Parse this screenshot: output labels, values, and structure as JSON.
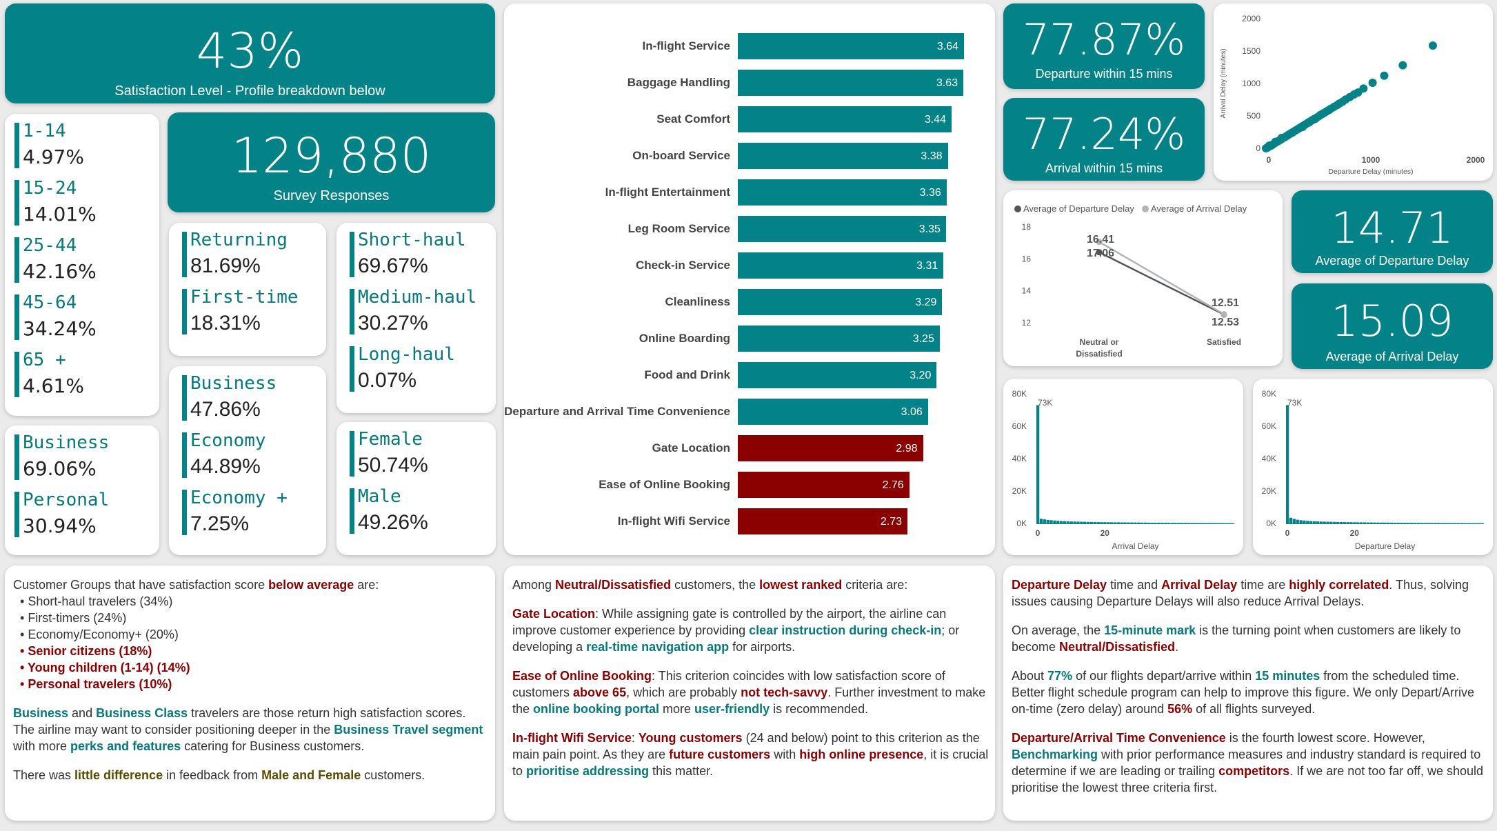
{
  "satisfaction": {
    "value": "43%",
    "label": "Satisfaction Level - Profile breakdown below"
  },
  "survey": {
    "value": "129,880",
    "label": "Survey Responses"
  },
  "age_groups": [
    {
      "label": "1-14",
      "value": "4.97%"
    },
    {
      "label": "15-24",
      "value": "14.01%"
    },
    {
      "label": "25-44",
      "value": "42.16%"
    },
    {
      "label": "45-64",
      "value": "34.24%"
    },
    {
      "label": "65 +",
      "value": "4.61%"
    }
  ],
  "travel_type": [
    {
      "label": "Business",
      "value": "69.06%"
    },
    {
      "label": "Personal",
      "value": "30.94%"
    }
  ],
  "customer_type": [
    {
      "label": "Returning",
      "value": "81.69%"
    },
    {
      "label": "First-time",
      "value": "18.31%"
    }
  ],
  "flight_class": [
    {
      "label": "Business",
      "value": "47.86%"
    },
    {
      "label": "Economy",
      "value": "44.89%"
    },
    {
      "label": "Economy +",
      "value": "7.25%"
    }
  ],
  "haul": [
    {
      "label": "Short-haul",
      "value": "69.67%"
    },
    {
      "label": "Medium-haul",
      "value": "30.27%"
    },
    {
      "label": "Long-haul",
      "value": "0.07%"
    }
  ],
  "gender": [
    {
      "label": "Female",
      "value": "50.74%"
    },
    {
      "label": "Male",
      "value": "49.26%"
    }
  ],
  "criteria_chart": {
    "type": "bar",
    "colors": {
      "above": "#038387",
      "below": "#8b0000"
    },
    "xlim": [
      0,
      3.64
    ],
    "categories": [
      "In-flight Service",
      "Baggage Handling",
      "Seat Comfort",
      "On-board Service",
      "In-flight Entertainment",
      "Leg Room Service",
      "Check-in Service",
      "Cleanliness",
      "Online Boarding",
      "Food and Drink",
      "Departure and Arrival Time Convenience",
      "Gate Location",
      "Ease of Online Booking",
      "In-flight Wifi Service"
    ],
    "values": [
      3.64,
      3.63,
      3.44,
      3.38,
      3.36,
      3.35,
      3.31,
      3.29,
      3.25,
      3.2,
      3.06,
      2.98,
      2.76,
      2.73
    ],
    "labels": [
      "3.64",
      "3.63",
      "3.44",
      "3.38",
      "3.36",
      "3.35",
      "3.31",
      "3.29",
      "3.25",
      "3.20",
      "3.06",
      "2.98",
      "2.76",
      "2.73"
    ],
    "below_average": [
      false,
      false,
      false,
      false,
      false,
      false,
      false,
      false,
      false,
      false,
      false,
      true,
      true,
      true
    ]
  },
  "departure_15": {
    "value": "77.87%",
    "label": "Departure within 15 mins"
  },
  "arrival_15": {
    "value": "77.24%",
    "label": "Arrival within 15 mins"
  },
  "avg_departure": {
    "value": "14.71",
    "label": "Average of Departure Delay"
  },
  "avg_arrival": {
    "value": "15.09",
    "label": "Average of Arrival Delay"
  },
  "scatter_chart": {
    "type": "scatter",
    "xlabel": "Departure Delay (minutes)",
    "ylabel": "Arrival Delay (minutes)",
    "xlim": [
      0,
      2000
    ],
    "ylim": [
      0,
      2000
    ],
    "xticks": [
      "0",
      "1000",
      "2000"
    ],
    "yticks": [
      "0",
      "500",
      "1000",
      "1500",
      "2000"
    ],
    "color": "#038387",
    "points": [
      [
        1592,
        1584
      ],
      [
        1305,
        1280
      ],
      [
        1128,
        1120
      ],
      [
        1017,
        1011
      ],
      [
        930,
        921
      ],
      [
        878,
        860
      ],
      [
        840,
        830
      ],
      [
        800,
        790
      ],
      [
        760,
        752
      ],
      [
        730,
        718
      ],
      [
        700,
        690
      ],
      [
        680,
        668
      ],
      [
        650,
        640
      ],
      [
        620,
        612
      ],
      [
        600,
        590
      ],
      [
        580,
        572
      ],
      [
        560,
        550
      ],
      [
        540,
        532
      ],
      [
        520,
        515
      ],
      [
        500,
        490
      ],
      [
        480,
        470
      ],
      [
        460,
        452
      ],
      [
        440,
        432
      ],
      [
        420,
        412
      ],
      [
        400,
        393
      ],
      [
        380,
        372
      ],
      [
        360,
        352
      ],
      [
        340,
        333
      ],
      [
        320,
        312
      ],
      [
        300,
        292
      ],
      [
        280,
        272
      ],
      [
        260,
        252
      ],
      [
        240,
        234
      ],
      [
        220,
        214
      ],
      [
        200,
        193
      ],
      [
        180,
        172
      ],
      [
        160,
        155
      ],
      [
        140,
        133
      ],
      [
        120,
        114
      ],
      [
        100,
        94
      ],
      [
        80,
        75
      ],
      [
        60,
        55
      ],
      [
        40,
        36
      ],
      [
        20,
        17
      ],
      [
        10,
        8
      ],
      [
        0,
        0
      ],
      [
        350,
        330
      ],
      [
        410,
        398
      ],
      [
        470,
        455
      ],
      [
        150,
        160
      ],
      [
        250,
        240
      ],
      [
        90,
        100
      ],
      [
        30,
        40
      ],
      [
        55,
        45
      ]
    ]
  },
  "line_chart": {
    "type": "line",
    "categories": [
      "Neutral or Dissatisfied",
      "Satisfied"
    ],
    "ylim": [
      11,
      18
    ],
    "yticks": [
      "12",
      "14",
      "16",
      "18"
    ],
    "series": [
      {
        "name": "Average of Departure Delay",
        "values": [
          16.41,
          12.51
        ],
        "labels": [
          "16.41",
          "12.51"
        ],
        "color": "#555555"
      },
      {
        "name": "Average of Arrival Delay",
        "values": [
          17.06,
          12.53
        ],
        "labels": [
          "17.06",
          "12.53"
        ],
        "color": "#b0b5bb"
      }
    ]
  },
  "arrival_hist": {
    "type": "bar",
    "xlabel": "Arrival Delay",
    "ylim": [
      0,
      80000
    ],
    "yticks": [
      "0K",
      "20K",
      "40K",
      "60K",
      "80K"
    ],
    "xticks": [
      "0",
      "20"
    ],
    "peak_label": "73K",
    "color": "#038387",
    "values": [
      73000,
      2900,
      2500,
      2200,
      2000,
      1800,
      1650,
      1500,
      1400,
      1300,
      1200,
      1150,
      1100,
      1050,
      1000,
      950,
      900,
      850,
      820,
      790,
      760,
      730,
      700,
      680,
      660,
      640,
      620,
      600,
      580,
      560,
      540,
      520,
      500,
      480,
      460,
      440,
      420,
      400,
      380,
      360,
      350,
      340,
      330,
      320,
      310,
      300,
      290,
      280,
      270,
      260,
      250,
      240,
      230,
      220,
      210,
      200,
      190,
      180,
      170
    ]
  },
  "departure_hist": {
    "type": "bar",
    "xlabel": "Departure Delay",
    "ylim": [
      0,
      80000
    ],
    "yticks": [
      "0K",
      "20K",
      "40K",
      "60K",
      "80K"
    ],
    "xticks": [
      "0",
      "20"
    ],
    "peak_label": "73K",
    "color": "#038387",
    "values": [
      73000,
      3500,
      2800,
      2300,
      2000,
      1800,
      1600,
      1450,
      1350,
      1250,
      1150,
      1100,
      1050,
      1000,
      950,
      900,
      860,
      820,
      780,
      750,
      720,
      690,
      660,
      630,
      610,
      590,
      570,
      550,
      530,
      510,
      490,
      470,
      450,
      430,
      410,
      395,
      380,
      365,
      350,
      335,
      320,
      310,
      300,
      290,
      280,
      270,
      260,
      250,
      240,
      230,
      220,
      210,
      200,
      190,
      180,
      170,
      160,
      150,
      140
    ]
  },
  "notes": {
    "groups_intro_a": "Customer Groups that have satisfaction score ",
    "groups_intro_b": "below average",
    "groups_intro_c": " are:",
    "groups": [
      "Short-haul travelers (34%)",
      "First-timers (24%)",
      "Economy/Economy+ (20%)"
    ],
    "groups_red": [
      "Senior citizens (18%)",
      "Young children (1-14) (14%)",
      "Personal travelers (10%)"
    ],
    "business_a": "Business",
    "business_b": " and ",
    "business_c": "Business Class",
    "business_d": " travelers are those return high satisfaction scores.",
    "business_e": "The airline may want to consider positioning deeper in the ",
    "business_f": "Business Travel segment",
    "business_g": " with more ",
    "business_h": "perks and features",
    "business_i": " catering for Business customers.",
    "gender_a": "There was ",
    "gender_b": "little difference",
    "gender_c": " in feedback from ",
    "gender_d": "Male and Female",
    "gender_e": " customers.",
    "mid_intro_a": "Among ",
    "mid_intro_b": "Neutral/Dissatisfied",
    "mid_intro_c": " customers, the ",
    "mid_intro_d": "lowest ranked",
    "mid_intro_e": " criteria are:",
    "gate_a": "Gate Location",
    "gate_b": ": While assigning gate is controlled by the airport, the airline can improve customer experience by providing ",
    "gate_c": "clear instruction during check-in",
    "gate_d": "; or developing a ",
    "gate_e": "real-time navigation app",
    "gate_f": " for airports.",
    "ease_a": "Ease of Online Booking",
    "ease_b": ": This criterion coincides with low satisfaction score of customers ",
    "ease_c": "above 65",
    "ease_d": ", which are probably ",
    "ease_e": "not tech-savvy",
    "ease_f": ". Further investment to make the ",
    "ease_g": "online booking portal",
    "ease_h": " more ",
    "ease_i": "user-friendly",
    "ease_j": " is recommended.",
    "wifi_a": "In-flight Wifi Service",
    "wifi_b": ": ",
    "wifi_c": "Young customers",
    "wifi_d": " (24 and below) point to this criterion as the main pain point. As they are ",
    "wifi_e": "future customers",
    "wifi_f": " with ",
    "wifi_g": "high online presence",
    "wifi_h": ", it is crucial to ",
    "wifi_i": "prioritise addressing",
    "wifi_j": " this matter.",
    "delay_a": "Departure Delay",
    "delay_b": " time and ",
    "delay_c": "Arrival Delay",
    "delay_d": " time are ",
    "delay_e": "highly correlated",
    "delay_f": ". Thus, solving issues causing Departure Delays will also reduce Arrival Delays.",
    "mark_a": "On average, the ",
    "mark_b": "15-minute mark",
    "mark_c": " is the turning point when customers are likely to become ",
    "mark_d": "Neutral/Dissatisfied",
    "mark_e": ".",
    "about_a": "About ",
    "about_b": "77%",
    "about_c": " of our flights depart/arrive within ",
    "about_d": "15 minutes",
    "about_e": " from the scheduled time. Better flight schedule program can help to improve this figure. We only Depart/Arrive on-time (zero delay) around ",
    "about_f": "56%",
    "about_g": " of all flights surveyed.",
    "conv_a": "Departure/Arrival Time Convenience",
    "conv_b": " is the fourth lowest score. However, ",
    "conv_c": "Benchmarking",
    "conv_d": " with prior performance measures and industry standard is required to determine if we are leading or trailing ",
    "conv_e": "competitors",
    "conv_f": ". If we are not too far off, we should prioritise the lowest three criteria first."
  }
}
